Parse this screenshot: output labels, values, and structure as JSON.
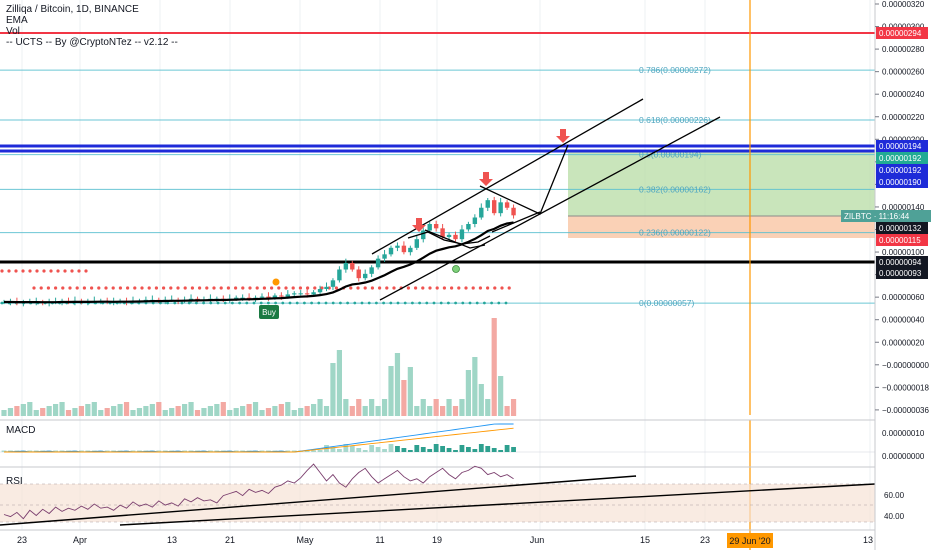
{
  "header": {
    "symbol_line": "Zilliqa / Bitcoin, 1D, BINANCE",
    "indicators": [
      "EMA",
      "Vol",
      "-- UCTS -- By @CryptoNTez -- v2.12 --"
    ]
  },
  "panes": {
    "macd_label": "MACD",
    "rsi_label": "RSI"
  },
  "fib_levels": [
    {
      "label": "0.786(0.00000272)",
      "price": 272
    },
    {
      "label": "0.618(0.00000226)",
      "price": 226
    },
    {
      "label": "0.5(0.00000194)",
      "price": 194
    },
    {
      "label": "0.382(0.00000162)",
      "price": 162
    },
    {
      "label": "0.236(0.00000122)",
      "price": 122
    },
    {
      "label": "0(0.00000057)",
      "price": 57
    }
  ],
  "price_axis_ticks": [
    "0.00000320",
    "0.00000300",
    "0.00000280",
    "0.00000260",
    "0.00000240",
    "0.00000220",
    "0.00000200",
    "0.00000180",
    "0.00000160",
    "0.00000140",
    "0.00000120",
    "0.00000100",
    "0.00000080",
    "0.00000060",
    "0.00000040",
    "0.00000020",
    "−0.00000000",
    "−0.00000018",
    "−0.00000036"
  ],
  "price_badges": [
    {
      "text": "0.00000294",
      "color": "#f23645"
    },
    {
      "text": "0.00000194",
      "color": "#1e2bd8"
    },
    {
      "text": "0.00000192",
      "color": "#22ab94"
    },
    {
      "text": "0.00000192",
      "color": "#1e2bd8"
    },
    {
      "text": "0.00000190",
      "color": "#1e2bd8"
    },
    {
      "text": "ZILBTC · 11:16:44",
      "color": "#4fa197"
    },
    {
      "text": "0.00000132",
      "color": "#131722"
    },
    {
      "text": "0.00000115",
      "color": "#f23645"
    },
    {
      "text": "0.00000094",
      "color": "#131722"
    },
    {
      "text": "0.00000093",
      "color": "#131722"
    }
  ],
  "macd_axis_ticks": [
    "0.00000010",
    "0.00000000"
  ],
  "rsi_axis_ticks": [
    "60.00",
    "40.00"
  ],
  "time_axis": [
    "23",
    "Apr",
    "13",
    "21",
    "May",
    "11",
    "19",
    "Jun",
    "15",
    "23",
    "13"
  ],
  "time_highlight": "29 Jun '20",
  "buy_label": "Buy",
  "colors": {
    "up": "#26a69a",
    "down": "#ef5350",
    "orange_line": "#ff9800",
    "red_line": "#f23645",
    "blue_line": "#1e2bd8"
  }
}
